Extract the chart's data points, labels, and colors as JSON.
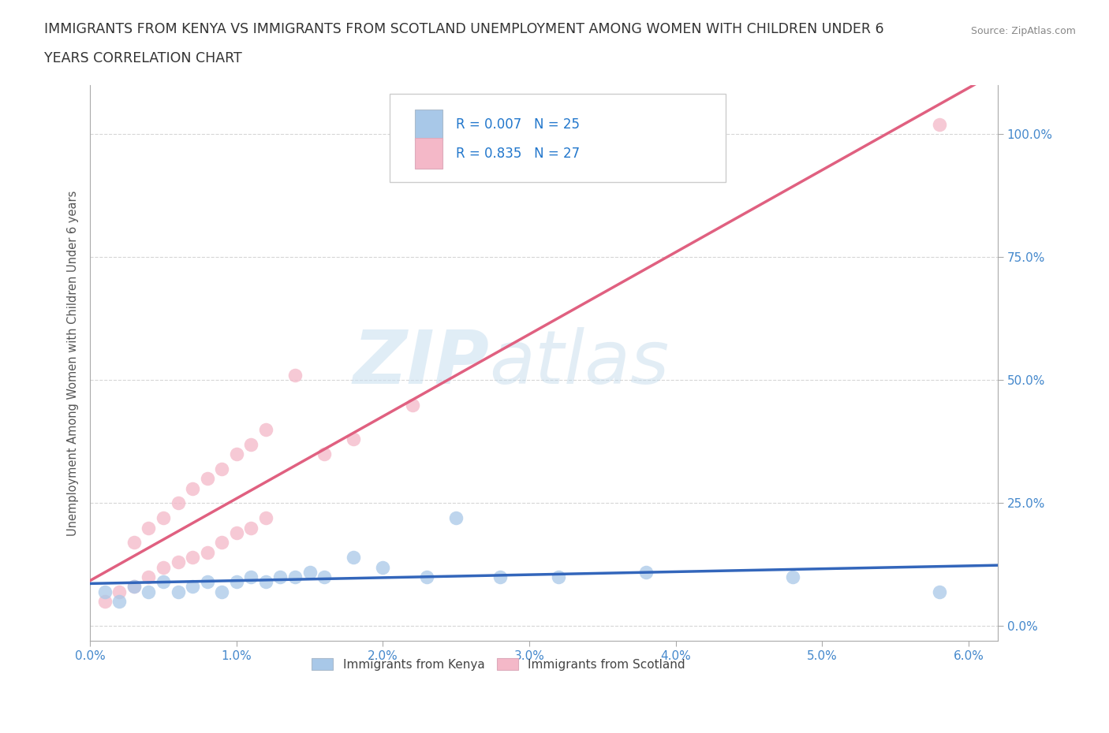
{
  "title_line1": "IMMIGRANTS FROM KENYA VS IMMIGRANTS FROM SCOTLAND UNEMPLOYMENT AMONG WOMEN WITH CHILDREN UNDER 6",
  "title_line2": "YEARS CORRELATION CHART",
  "source": "Source: ZipAtlas.com",
  "ylabel": "Unemployment Among Women with Children Under 6 years",
  "xlim": [
    0.0,
    0.062
  ],
  "ylim": [
    -0.03,
    1.1
  ],
  "xticks": [
    0.0,
    0.01,
    0.02,
    0.03,
    0.04,
    0.05,
    0.06
  ],
  "xticklabels": [
    "0.0%",
    "1.0%",
    "2.0%",
    "3.0%",
    "4.0%",
    "5.0%",
    "6.0%"
  ],
  "yticks": [
    0.0,
    0.25,
    0.5,
    0.75,
    1.0
  ],
  "yticklabels": [
    "0.0%",
    "25.0%",
    "50.0%",
    "75.0%",
    "100.0%"
  ],
  "kenya_R": 0.007,
  "kenya_N": 25,
  "scotland_R": 0.835,
  "scotland_N": 27,
  "kenya_color": "#a8c8e8",
  "scotland_color": "#f4b8c8",
  "kenya_line_color": "#3366bb",
  "scotland_line_color": "#e06080",
  "kenya_x": [
    0.001,
    0.002,
    0.003,
    0.004,
    0.005,
    0.006,
    0.007,
    0.008,
    0.009,
    0.01,
    0.011,
    0.012,
    0.013,
    0.014,
    0.015,
    0.016,
    0.018,
    0.02,
    0.023,
    0.025,
    0.028,
    0.032,
    0.038,
    0.048,
    0.058
  ],
  "kenya_y": [
    0.07,
    0.05,
    0.08,
    0.07,
    0.09,
    0.07,
    0.08,
    0.09,
    0.07,
    0.09,
    0.1,
    0.09,
    0.1,
    0.1,
    0.11,
    0.1,
    0.14,
    0.12,
    0.1,
    0.22,
    0.1,
    0.1,
    0.11,
    0.1,
    0.07
  ],
  "scotland_x": [
    0.001,
    0.002,
    0.003,
    0.004,
    0.005,
    0.006,
    0.007,
    0.008,
    0.009,
    0.01,
    0.011,
    0.012,
    0.003,
    0.004,
    0.005,
    0.006,
    0.007,
    0.008,
    0.009,
    0.01,
    0.011,
    0.012,
    0.014,
    0.016,
    0.018,
    0.022,
    0.058
  ],
  "scotland_y": [
    0.05,
    0.07,
    0.08,
    0.1,
    0.12,
    0.13,
    0.14,
    0.15,
    0.17,
    0.19,
    0.2,
    0.22,
    0.17,
    0.2,
    0.22,
    0.25,
    0.28,
    0.3,
    0.32,
    0.35,
    0.37,
    0.4,
    0.51,
    0.35,
    0.38,
    0.45,
    1.02
  ],
  "watermark_zip": "ZIP",
  "watermark_atlas": "atlas",
  "background_color": "#ffffff",
  "grid_color": "#cccccc",
  "title_color": "#333333",
  "axis_label_color": "#555555",
  "tick_color": "#4488cc",
  "legend_R_color": "#2277cc",
  "legend_label_color": "#444444"
}
